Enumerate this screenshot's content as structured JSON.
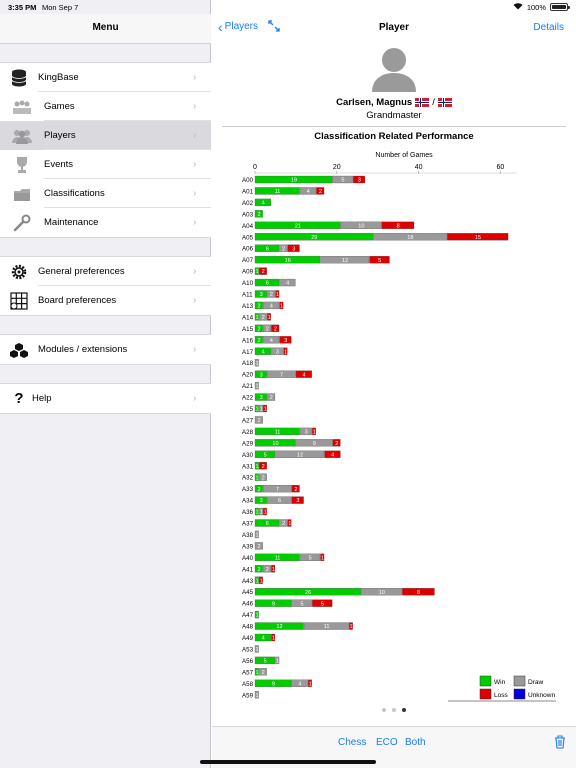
{
  "status": {
    "time": "3:35 PM",
    "date": "Mon Sep 7",
    "battery": "100%"
  },
  "sidebar": {
    "title": "Menu",
    "items": [
      {
        "label": "KingBase",
        "icon": "database-icon"
      },
      {
        "label": "Games",
        "icon": "chessboard-icon"
      },
      {
        "label": "Players",
        "icon": "players-icon",
        "selected": true
      },
      {
        "label": "Events",
        "icon": "trophy-icon"
      },
      {
        "label": "Classifications",
        "icon": "classification-icon"
      },
      {
        "label": "Maintenance",
        "icon": "wrench-icon"
      },
      {
        "label": "General preferences",
        "icon": "gear-icon"
      },
      {
        "label": "Board preferences",
        "icon": "board-grid-icon"
      },
      {
        "label": "Modules / extensions",
        "icon": "cubes-icon"
      },
      {
        "label": "Help",
        "icon": "question-icon"
      }
    ]
  },
  "nav": {
    "back_label": "Players",
    "title": "Player",
    "details_label": "Details"
  },
  "player": {
    "name": "Carlsen, Magnus",
    "flag_separator": "/",
    "title": "Grandmaster"
  },
  "chart_data": {
    "type": "bar",
    "stacked": true,
    "orientation": "horizontal",
    "title": "Classification Related Performance",
    "xlabel": "Number of Games",
    "xlim": [
      0,
      64
    ],
    "xticks": [
      0,
      20,
      40,
      60
    ],
    "categories": [
      "A00",
      "A01",
      "A02",
      "A03",
      "A04",
      "A05",
      "A06",
      "A07",
      "A09",
      "A10",
      "A11",
      "A13",
      "A14",
      "A15",
      "A16",
      "A17",
      "A18",
      "A20",
      "A21",
      "A22",
      "A25",
      "A27",
      "A28",
      "A29",
      "A30",
      "A31",
      "A32",
      "A33",
      "A34",
      "A36",
      "A37",
      "A38",
      "A39",
      "A40",
      "A41",
      "A43",
      "A45",
      "A46",
      "A47",
      "A48",
      "A49",
      "A53",
      "A56",
      "A57",
      "A58",
      "A59"
    ],
    "series": [
      {
        "name": "Win",
        "color": "#00cc00",
        "values": [
          19,
          11,
          4,
          2,
          21,
          29,
          6,
          16,
          1,
          6,
          3,
          2,
          1,
          2,
          2,
          4,
          0,
          3,
          0,
          3,
          1,
          0,
          11,
          10,
          5,
          1,
          1,
          2,
          3,
          1,
          6,
          0,
          0,
          11,
          2,
          1,
          26,
          9,
          1,
          12,
          4,
          0,
          5,
          1,
          9,
          0
        ]
      },
      {
        "name": "Draw",
        "color": "#999999",
        "values": [
          5,
          4,
          0,
          0,
          10,
          18,
          2,
          12,
          0,
          4,
          2,
          4,
          2,
          2,
          4,
          3,
          1,
          7,
          1,
          2,
          1,
          2,
          3,
          9,
          12,
          0,
          2,
          7,
          6,
          1,
          2,
          1,
          2,
          5,
          2,
          0,
          10,
          5,
          0,
          11,
          0,
          1,
          1,
          2,
          4,
          1
        ]
      },
      {
        "name": "Loss",
        "color": "#dd0000",
        "values": [
          3,
          2,
          0,
          0,
          8,
          15,
          3,
          5,
          2,
          0,
          1,
          1,
          1,
          2,
          3,
          1,
          0,
          4,
          0,
          0,
          1,
          0,
          1,
          2,
          4,
          2,
          0,
          2,
          3,
          1,
          1,
          0,
          0,
          1,
          1,
          1,
          8,
          5,
          0,
          1,
          1,
          0,
          0,
          0,
          1,
          0
        ]
      },
      {
        "name": "Unknown",
        "color": "#0000dd",
        "values": [
          0,
          0,
          0,
          0,
          0,
          0,
          0,
          0,
          0,
          0,
          0,
          0,
          0,
          0,
          0,
          0,
          0,
          0,
          0,
          0,
          0,
          0,
          0,
          0,
          0,
          0,
          0,
          0,
          0,
          0,
          0,
          0,
          0,
          0,
          0,
          0,
          0,
          0,
          0,
          0,
          0,
          0,
          0,
          0,
          0,
          0
        ]
      }
    ],
    "legend_position": "bottom-right"
  },
  "pager": {
    "count": 3,
    "active": 2
  },
  "toolbar": {
    "chess_label": "Chess",
    "eco_label": "ECO",
    "both_label": "Both"
  }
}
